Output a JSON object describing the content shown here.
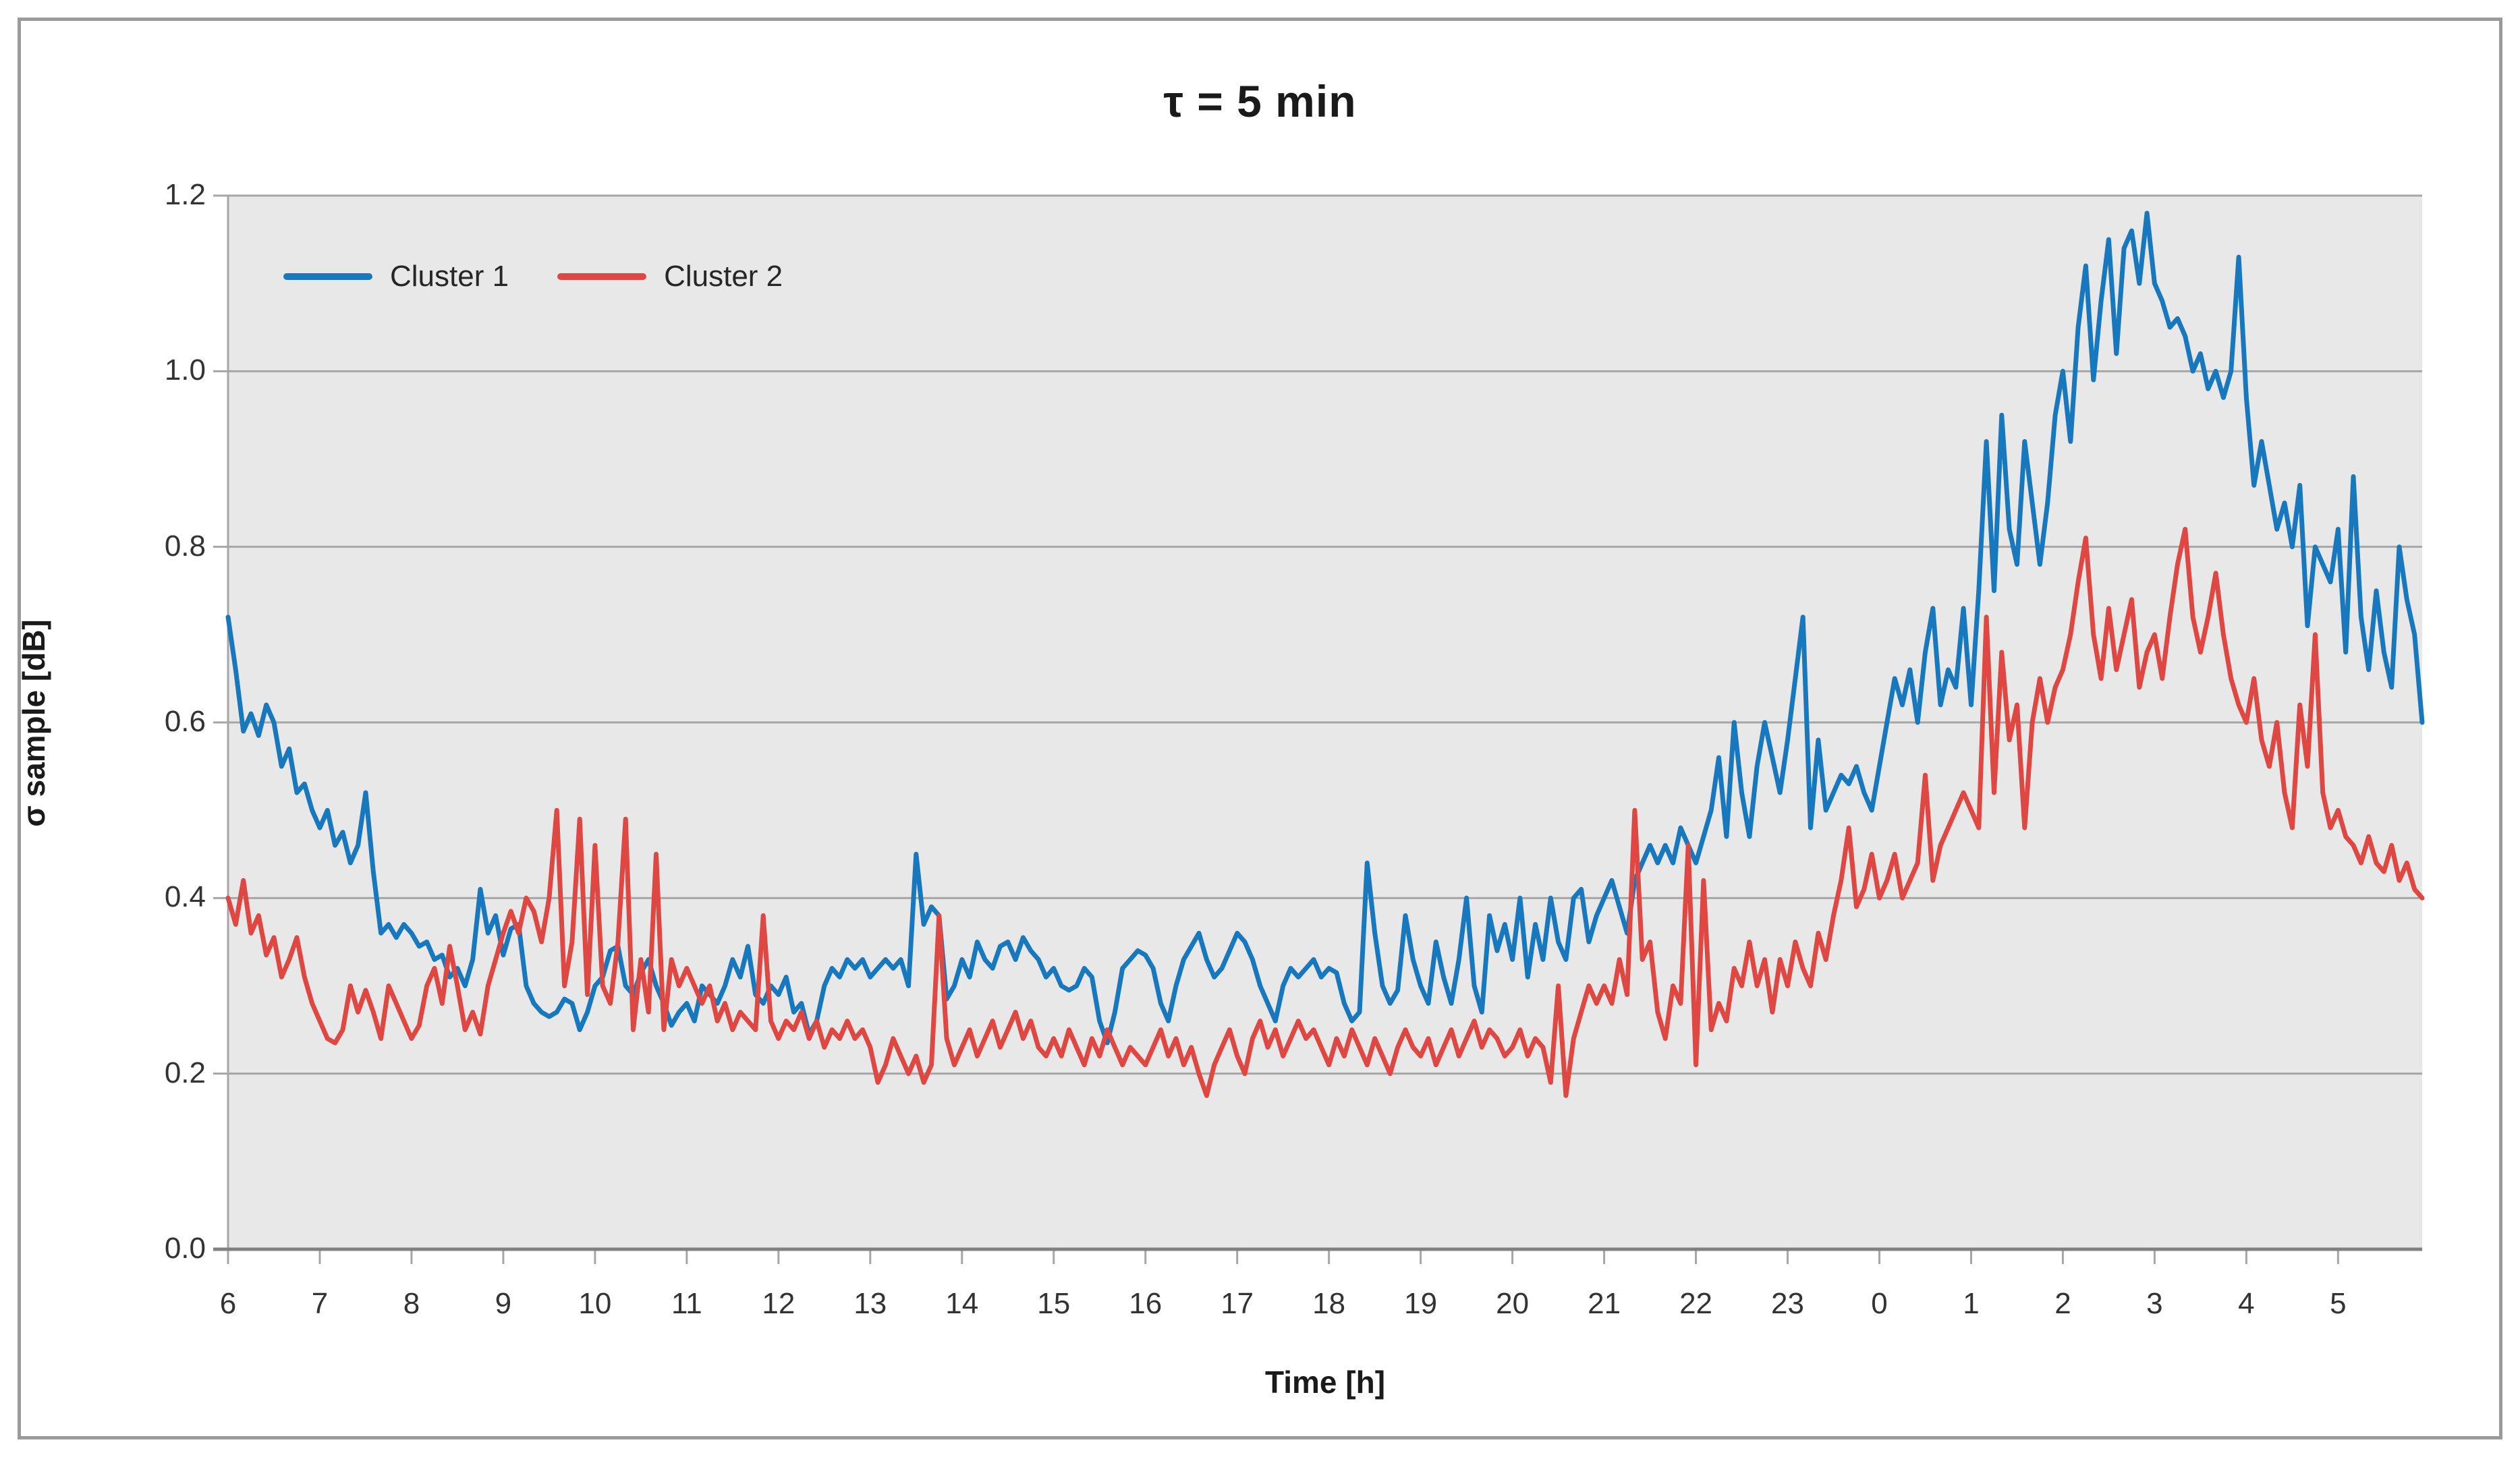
{
  "title": "τ = 5 min",
  "legend": {
    "items": [
      {
        "label": "Cluster 1",
        "color": "#1878BE"
      },
      {
        "label": "Cluster 2",
        "color": "#DE4742"
      }
    ]
  },
  "colors": {
    "plot_background": "#E8E8E8",
    "gridline": "#A6A6A6",
    "axis_line": "#808080",
    "tick_text": "#333333"
  },
  "chart_data": {
    "type": "line",
    "title": "τ = 5 min",
    "xlabel": "Time [h]",
    "ylabel": "σ sample [dB]",
    "ylim": [
      0,
      1.2
    ],
    "y_ticks": [
      0.0,
      0.2,
      0.4,
      0.6,
      0.8,
      1.0,
      1.2
    ],
    "x_tick_labels": [
      "6",
      "7",
      "8",
      "9",
      "10",
      "11",
      "12",
      "13",
      "14",
      "15",
      "16",
      "17",
      "18",
      "19",
      "20",
      "21",
      "22",
      "23",
      "0",
      "1",
      "2",
      "3",
      "4",
      "5"
    ],
    "x_start_hour": 6,
    "sample_interval_minutes": 5,
    "grid": true,
    "legend_position": "top-left-inside",
    "series": [
      {
        "name": "Cluster 1",
        "color": "#1878BE",
        "values": [
          0.72,
          0.66,
          0.59,
          0.61,
          0.585,
          0.62,
          0.6,
          0.55,
          0.57,
          0.52,
          0.53,
          0.5,
          0.48,
          0.5,
          0.46,
          0.475,
          0.44,
          0.46,
          0.52,
          0.43,
          0.36,
          0.37,
          0.355,
          0.37,
          0.36,
          0.345,
          0.35,
          0.33,
          0.335,
          0.31,
          0.32,
          0.3,
          0.33,
          0.41,
          0.36,
          0.38,
          0.335,
          0.365,
          0.37,
          0.3,
          0.28,
          0.27,
          0.265,
          0.27,
          0.285,
          0.28,
          0.25,
          0.27,
          0.3,
          0.31,
          0.34,
          0.345,
          0.3,
          0.29,
          0.315,
          0.33,
          0.3,
          0.28,
          0.255,
          0.27,
          0.28,
          0.26,
          0.3,
          0.29,
          0.28,
          0.3,
          0.33,
          0.31,
          0.345,
          0.29,
          0.28,
          0.3,
          0.29,
          0.31,
          0.27,
          0.28,
          0.245,
          0.26,
          0.3,
          0.32,
          0.31,
          0.33,
          0.32,
          0.33,
          0.31,
          0.32,
          0.33,
          0.32,
          0.33,
          0.3,
          0.45,
          0.37,
          0.39,
          0.38,
          0.285,
          0.3,
          0.33,
          0.31,
          0.35,
          0.33,
          0.32,
          0.345,
          0.35,
          0.33,
          0.355,
          0.34,
          0.33,
          0.31,
          0.32,
          0.3,
          0.295,
          0.3,
          0.32,
          0.31,
          0.26,
          0.235,
          0.27,
          0.32,
          0.33,
          0.34,
          0.335,
          0.32,
          0.28,
          0.26,
          0.3,
          0.33,
          0.345,
          0.36,
          0.33,
          0.31,
          0.32,
          0.34,
          0.36,
          0.35,
          0.33,
          0.3,
          0.28,
          0.26,
          0.3,
          0.32,
          0.31,
          0.32,
          0.33,
          0.31,
          0.32,
          0.315,
          0.28,
          0.26,
          0.27,
          0.44,
          0.36,
          0.3,
          0.28,
          0.295,
          0.38,
          0.33,
          0.3,
          0.28,
          0.35,
          0.31,
          0.28,
          0.33,
          0.4,
          0.3,
          0.27,
          0.38,
          0.34,
          0.37,
          0.33,
          0.4,
          0.31,
          0.37,
          0.33,
          0.4,
          0.35,
          0.33,
          0.4,
          0.41,
          0.35,
          0.38,
          0.4,
          0.42,
          0.39,
          0.36,
          0.42,
          0.44,
          0.46,
          0.44,
          0.46,
          0.44,
          0.48,
          0.46,
          0.44,
          0.47,
          0.5,
          0.56,
          0.47,
          0.6,
          0.52,
          0.47,
          0.55,
          0.6,
          0.56,
          0.52,
          0.58,
          0.65,
          0.72,
          0.48,
          0.58,
          0.5,
          0.52,
          0.54,
          0.53,
          0.55,
          0.52,
          0.5,
          0.55,
          0.6,
          0.65,
          0.62,
          0.66,
          0.6,
          0.68,
          0.73,
          0.62,
          0.66,
          0.64,
          0.73,
          0.62,
          0.75,
          0.92,
          0.75,
          0.95,
          0.82,
          0.78,
          0.92,
          0.85,
          0.78,
          0.85,
          0.95,
          1.0,
          0.92,
          1.05,
          1.12,
          0.99,
          1.08,
          1.15,
          1.02,
          1.14,
          1.16,
          1.1,
          1.18,
          1.1,
          1.08,
          1.05,
          1.06,
          1.04,
          1.0,
          1.02,
          0.98,
          1.0,
          0.97,
          1.0,
          1.13,
          0.97,
          0.87,
          0.92,
          0.87,
          0.82,
          0.85,
          0.8,
          0.87,
          0.71,
          0.8,
          0.78,
          0.76,
          0.82,
          0.68,
          0.88,
          0.72,
          0.66,
          0.75,
          0.68,
          0.64,
          0.8,
          0.74,
          0.7,
          0.6
        ]
      },
      {
        "name": "Cluster 2",
        "color": "#DE4742",
        "values": [
          0.4,
          0.37,
          0.42,
          0.36,
          0.38,
          0.335,
          0.355,
          0.31,
          0.33,
          0.355,
          0.31,
          0.28,
          0.26,
          0.24,
          0.235,
          0.25,
          0.3,
          0.27,
          0.295,
          0.27,
          0.24,
          0.3,
          0.28,
          0.26,
          0.24,
          0.255,
          0.3,
          0.32,
          0.28,
          0.345,
          0.3,
          0.25,
          0.27,
          0.245,
          0.3,
          0.33,
          0.36,
          0.385,
          0.36,
          0.4,
          0.385,
          0.35,
          0.4,
          0.5,
          0.3,
          0.35,
          0.49,
          0.29,
          0.46,
          0.3,
          0.28,
          0.35,
          0.49,
          0.25,
          0.33,
          0.27,
          0.45,
          0.25,
          0.33,
          0.3,
          0.32,
          0.3,
          0.28,
          0.3,
          0.26,
          0.28,
          0.25,
          0.27,
          0.26,
          0.25,
          0.38,
          0.26,
          0.24,
          0.26,
          0.25,
          0.27,
          0.24,
          0.26,
          0.23,
          0.25,
          0.24,
          0.26,
          0.24,
          0.25,
          0.23,
          0.19,
          0.21,
          0.24,
          0.22,
          0.2,
          0.22,
          0.19,
          0.21,
          0.38,
          0.24,
          0.21,
          0.23,
          0.25,
          0.22,
          0.24,
          0.26,
          0.23,
          0.25,
          0.27,
          0.24,
          0.26,
          0.23,
          0.22,
          0.24,
          0.22,
          0.25,
          0.23,
          0.21,
          0.24,
          0.22,
          0.25,
          0.23,
          0.21,
          0.23,
          0.22,
          0.21,
          0.23,
          0.25,
          0.22,
          0.24,
          0.21,
          0.23,
          0.2,
          0.175,
          0.21,
          0.23,
          0.25,
          0.22,
          0.2,
          0.24,
          0.26,
          0.23,
          0.25,
          0.22,
          0.24,
          0.26,
          0.24,
          0.25,
          0.23,
          0.21,
          0.24,
          0.22,
          0.25,
          0.23,
          0.21,
          0.24,
          0.22,
          0.2,
          0.23,
          0.25,
          0.23,
          0.22,
          0.24,
          0.21,
          0.23,
          0.25,
          0.22,
          0.24,
          0.26,
          0.23,
          0.25,
          0.24,
          0.22,
          0.23,
          0.25,
          0.22,
          0.24,
          0.23,
          0.19,
          0.3,
          0.175,
          0.24,
          0.27,
          0.3,
          0.28,
          0.3,
          0.28,
          0.33,
          0.29,
          0.5,
          0.33,
          0.35,
          0.27,
          0.24,
          0.3,
          0.28,
          0.46,
          0.21,
          0.42,
          0.25,
          0.28,
          0.26,
          0.32,
          0.3,
          0.35,
          0.3,
          0.33,
          0.27,
          0.33,
          0.3,
          0.35,
          0.32,
          0.3,
          0.36,
          0.33,
          0.38,
          0.42,
          0.48,
          0.39,
          0.41,
          0.45,
          0.4,
          0.42,
          0.45,
          0.4,
          0.42,
          0.44,
          0.54,
          0.42,
          0.46,
          0.48,
          0.5,
          0.52,
          0.5,
          0.48,
          0.72,
          0.52,
          0.68,
          0.58,
          0.62,
          0.48,
          0.6,
          0.65,
          0.6,
          0.64,
          0.66,
          0.7,
          0.76,
          0.81,
          0.7,
          0.65,
          0.73,
          0.66,
          0.7,
          0.74,
          0.64,
          0.68,
          0.7,
          0.65,
          0.72,
          0.78,
          0.82,
          0.72,
          0.68,
          0.72,
          0.77,
          0.7,
          0.65,
          0.62,
          0.6,
          0.65,
          0.58,
          0.55,
          0.6,
          0.52,
          0.48,
          0.62,
          0.55,
          0.7,
          0.52,
          0.48,
          0.5,
          0.47,
          0.46,
          0.44,
          0.47,
          0.44,
          0.43,
          0.46,
          0.42,
          0.44,
          0.41,
          0.4
        ]
      }
    ]
  }
}
